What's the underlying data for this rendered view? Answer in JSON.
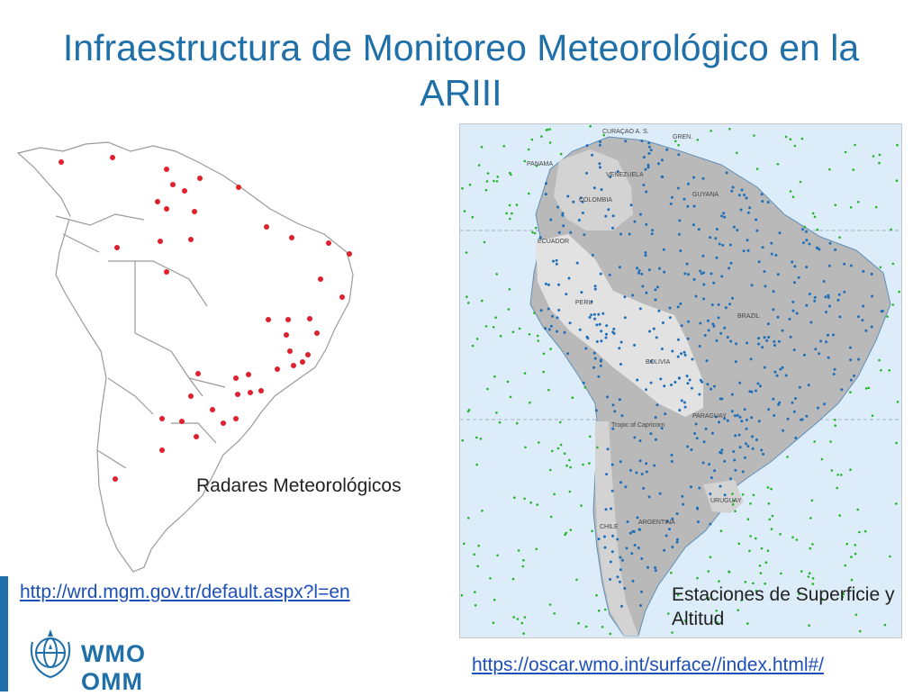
{
  "title": "Infraestructura de Monitoreo Meteorológico en la ARIII",
  "left_map": {
    "caption": "Radares Meteorológicos",
    "link": "http://wrd.mgm.gov.tr/default.aspx?l=en",
    "dot_color": "#e0202c"
  },
  "right_map": {
    "caption": "Estaciones de Superficie y Altitud",
    "link": "https://oscar.wmo.int/surface//index.html#/",
    "ocean_color": "#dcecf8",
    "land_color": "#b9b9b9",
    "land_dot_color": "#1f6fb8",
    "sea_dot_color": "#22b52a",
    "labels": {
      "curacao": "CURAÇAO A. S.",
      "gren": "GREN.",
      "panama": "PANAMA",
      "venezuela": "VENEZUELA",
      "guyana": "GUYANA",
      "colombia": "COLOMBIA",
      "ecuador": "ECUADOR",
      "peru": "PERU",
      "brazil": "BRAZIL",
      "bolivia": "BOLIVIA",
      "tropic": "Tropic of Capricorn",
      "paraguay": "PARAGUAY",
      "argentina": "ARGENTINA",
      "uruguay": "URUGUAY",
      "chile": "CHILE"
    }
  },
  "logo": {
    "text": "WMO OMM",
    "icon": "wmo-emblem-icon",
    "color": "#1f6fa8"
  }
}
